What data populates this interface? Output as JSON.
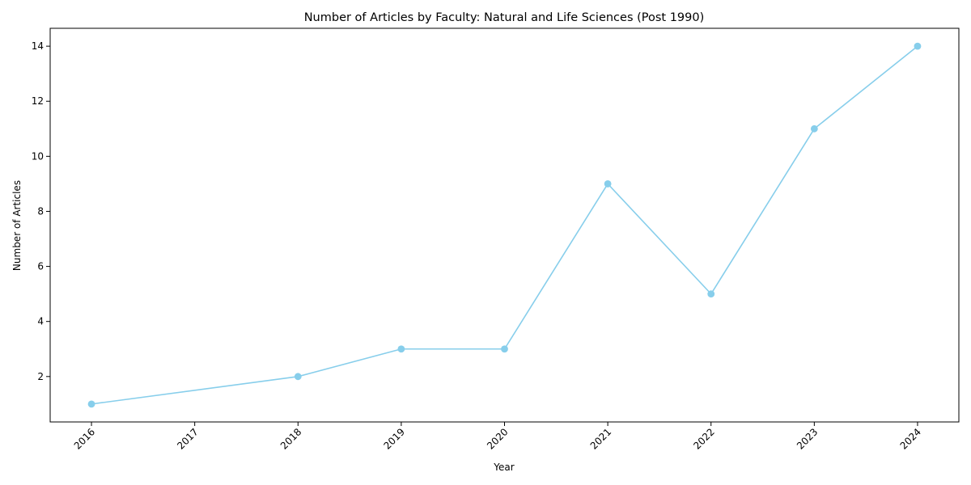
{
  "chart_data": {
    "type": "line",
    "title": "Number of Articles by Faculty: Natural and Life Sciences (Post 1990)",
    "xlabel": "Year",
    "ylabel": "Number of Articles",
    "x": [
      2016,
      2018,
      2019,
      2020,
      2021,
      2022,
      2023,
      2024
    ],
    "series": [
      {
        "values": [
          1,
          2,
          3,
          3,
          9,
          5,
          11,
          14
        ]
      }
    ],
    "x_ticks": [
      "2016",
      "2017",
      "2018",
      "2019",
      "2020",
      "2021",
      "2022",
      "2023",
      "2024"
    ],
    "y_ticks": [
      "2",
      "4",
      "6",
      "8",
      "10",
      "12",
      "14"
    ],
    "xlim": [
      2015.6,
      2024.4
    ],
    "ylim": [
      0.35,
      14.65
    ],
    "grid": false,
    "legend": "none",
    "colors": {
      "series": "#87ceeb",
      "axis": "#000000"
    }
  }
}
